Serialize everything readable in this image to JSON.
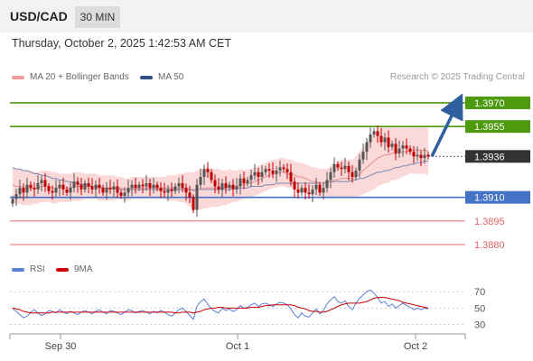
{
  "header": {
    "symbol": "USD/CAD",
    "timeframe": "30 MIN"
  },
  "timestamp": "Thursday, October 2, 2025 1:42:53 AM CET",
  "legend": {
    "bollinger": "MA 20 + Bollinger Bands",
    "ma50": "MA 50",
    "rsi": "RSI",
    "rsi_ma": "9MA",
    "credit": "Research © 2025 Trading Central"
  },
  "colors": {
    "resistance": "#4d9a0f",
    "support": "#4472c4",
    "last": "#333333",
    "red_level": "#e06666",
    "bull": "#555555",
    "bear": "#c00000",
    "band": "#fcd9d9",
    "ma20": "#e48c8c",
    "ma50": "#7a8bb5",
    "rsi": "#5b7fd8",
    "rsi_ma": "#cc0000",
    "arrow": "#2f5f9e"
  },
  "chart_data": [
    {
      "type": "candlestick",
      "title": "USD/CAD 30 MIN",
      "x_ticks": [
        "Sep 30",
        "Oct 1",
        "Oct 2"
      ],
      "ylim": [
        1.3872,
        1.3978
      ],
      "levels": [
        {
          "label": "1.3970",
          "value": 1.397,
          "kind": "resistance"
        },
        {
          "label": "1.3955",
          "value": 1.3955,
          "kind": "resistance"
        },
        {
          "label": "1.3936",
          "value": 1.3936,
          "kind": "last"
        },
        {
          "label": "1.3910",
          "value": 1.391,
          "kind": "support"
        },
        {
          "label": "1.3895",
          "value": 1.3895,
          "kind": "red"
        },
        {
          "label": "1.3880",
          "value": 1.388,
          "kind": "red"
        }
      ],
      "forecast_arrow": {
        "from": 1.3936,
        "to": 1.397
      },
      "close": [
        1.3909,
        1.3912,
        1.3916,
        1.3913,
        1.3918,
        1.3916,
        1.3915,
        1.3919,
        1.3921,
        1.3917,
        1.3914,
        1.3913,
        1.3916,
        1.3918,
        1.3915,
        1.3913,
        1.3916,
        1.392,
        1.3918,
        1.3915,
        1.3919,
        1.3917,
        1.3915,
        1.3918,
        1.3916,
        1.3913,
        1.3916,
        1.3915,
        1.3917,
        1.3913,
        1.3911,
        1.3913,
        1.3916,
        1.3918,
        1.3916,
        1.3918,
        1.3917,
        1.3919,
        1.3916,
        1.3918,
        1.3916,
        1.3914,
        1.3913,
        1.3915,
        1.3914,
        1.3917,
        1.3919,
        1.3916,
        1.3913,
        1.391,
        1.3902,
        1.3918,
        1.3923,
        1.3928,
        1.3926,
        1.3921,
        1.3917,
        1.3915,
        1.3919,
        1.3916,
        1.3918,
        1.3915,
        1.3917,
        1.3922,
        1.3919,
        1.3921,
        1.3924,
        1.3926,
        1.3923,
        1.3926,
        1.3928,
        1.3927,
        1.3925,
        1.3927,
        1.3929,
        1.3928,
        1.3926,
        1.392,
        1.3915,
        1.3913,
        1.3916,
        1.3913,
        1.3912,
        1.3915,
        1.3918,
        1.3913,
        1.3916,
        1.3921,
        1.3926,
        1.3931,
        1.3929,
        1.3928,
        1.393,
        1.3926,
        1.3923,
        1.3927,
        1.3934,
        1.3939,
        1.3945,
        1.395,
        1.3952,
        1.3949,
        1.3945,
        1.3948,
        1.3942,
        1.3944,
        1.3938,
        1.3941,
        1.3943,
        1.3941,
        1.3939,
        1.3936,
        1.3937,
        1.3935,
        1.3937,
        1.3936
      ],
      "ma20": [
        1.3918,
        1.3917,
        1.3917,
        1.3916,
        1.3916,
        1.3916,
        1.3916,
        1.3916,
        1.3917,
        1.3917,
        1.3917,
        1.3916,
        1.3916,
        1.3916,
        1.3916,
        1.3916,
        1.3916,
        1.3917,
        1.3917,
        1.3917,
        1.3917,
        1.3917,
        1.3917,
        1.3917,
        1.3916,
        1.3916,
        1.3916,
        1.3916,
        1.3916,
        1.3916,
        1.3916,
        1.3915,
        1.3915,
        1.3916,
        1.3916,
        1.3916,
        1.3916,
        1.3916,
        1.3916,
        1.3916,
        1.3916,
        1.3916,
        1.3916,
        1.3916,
        1.3916,
        1.3916,
        1.3916,
        1.3916,
        1.3916,
        1.3915,
        1.3914,
        1.3915,
        1.3915,
        1.3916,
        1.3916,
        1.3916,
        1.3916,
        1.3916,
        1.3916,
        1.3916,
        1.3917,
        1.3917,
        1.3917,
        1.3918,
        1.3918,
        1.3919,
        1.3919,
        1.392,
        1.3921,
        1.3922,
        1.3923,
        1.3924,
        1.3925,
        1.3925,
        1.3926,
        1.3926,
        1.3925,
        1.3925,
        1.3924,
        1.3923,
        1.3923,
        1.3922,
        1.3921,
        1.392,
        1.392,
        1.3919,
        1.3919,
        1.3919,
        1.392,
        1.3921,
        1.3921,
        1.3922,
        1.3922,
        1.3922,
        1.3922,
        1.3923,
        1.3925,
        1.3927,
        1.3929,
        1.3931,
        1.3933,
        1.3935,
        1.3936,
        1.3937,
        1.3937,
        1.3938,
        1.3938,
        1.3938,
        1.3939,
        1.3939,
        1.394,
        1.394,
        1.394,
        1.394,
        1.394,
        1.3939
      ],
      "ma50": [
        1.3929,
        1.3928,
        1.3928,
        1.3927,
        1.3927,
        1.3926,
        1.3925,
        1.3925,
        1.3924,
        1.3924,
        1.3923,
        1.3922,
        1.3922,
        1.3921,
        1.3921,
        1.392,
        1.392,
        1.3919,
        1.3919,
        1.3918,
        1.3918,
        1.3918,
        1.3917,
        1.3917,
        1.3917,
        1.3916,
        1.3916,
        1.3916,
        1.3916,
        1.3916,
        1.3915,
        1.3915,
        1.3915,
        1.3915,
        1.3915,
        1.3915,
        1.3915,
        1.3915,
        1.3915,
        1.3915,
        1.3915,
        1.3915,
        1.3915,
        1.3915,
        1.3915,
        1.3915,
        1.3915,
        1.3915,
        1.3915,
        1.3915,
        1.3915,
        1.3915,
        1.3915,
        1.3915,
        1.3915,
        1.3915,
        1.3915,
        1.3915,
        1.3915,
        1.3915,
        1.3915,
        1.3916,
        1.3916,
        1.3916,
        1.3916,
        1.3916,
        1.3917,
        1.3917,
        1.3917,
        1.3917,
        1.3918,
        1.3918,
        1.3918,
        1.3919,
        1.3919,
        1.3919,
        1.3919,
        1.3919,
        1.3919,
        1.3919,
        1.3919,
        1.3919,
        1.3919,
        1.3919,
        1.3919,
        1.3919,
        1.3919,
        1.392,
        1.392,
        1.392,
        1.392,
        1.392,
        1.392,
        1.392,
        1.3921,
        1.3921,
        1.3922,
        1.3922,
        1.3923,
        1.3924,
        1.3925,
        1.3926,
        1.3926,
        1.3927,
        1.3927,
        1.3928,
        1.3929,
        1.3929,
        1.393,
        1.393,
        1.3931,
        1.3931,
        1.3932,
        1.3932,
        1.3933,
        1.3933
      ],
      "band_width": [
        0.0011,
        0.0011,
        0.0011,
        0.0011,
        0.0011,
        0.0011,
        0.001,
        0.001,
        0.001,
        0.001,
        0.001,
        0.001,
        0.001,
        0.0009,
        0.0009,
        0.0009,
        0.0009,
        0.0009,
        0.0009,
        0.0009,
        0.0008,
        0.0008,
        0.0008,
        0.0008,
        0.0008,
        0.0008,
        0.0008,
        0.0008,
        0.0008,
        0.0007,
        0.0007,
        0.0007,
        0.0007,
        0.0007,
        0.0007,
        0.0007,
        0.0007,
        0.0007,
        0.0007,
        0.0007,
        0.0007,
        0.0007,
        0.0007,
        0.0008,
        0.0008,
        0.0008,
        0.0009,
        0.0009,
        0.001,
        0.0011,
        0.0012,
        0.0012,
        0.0013,
        0.0013,
        0.0013,
        0.0012,
        0.0012,
        0.0012,
        0.0011,
        0.0011,
        0.0011,
        0.001,
        0.001,
        0.001,
        0.0009,
        0.0009,
        0.0009,
        0.0009,
        0.0009,
        0.0009,
        0.0009,
        0.0009,
        0.0009,
        0.0009,
        0.0009,
        0.0009,
        0.0009,
        0.0009,
        0.0009,
        0.0009,
        0.0009,
        0.0009,
        0.0009,
        0.0009,
        0.0009,
        0.0009,
        0.0009,
        0.0009,
        0.001,
        0.0011,
        0.0011,
        0.0012,
        0.0012,
        0.0012,
        0.0012,
        0.0013,
        0.0014,
        0.0015,
        0.0016,
        0.0017,
        0.0018,
        0.0018,
        0.0018,
        0.0018,
        0.0018,
        0.0017,
        0.0017,
        0.0016,
        0.0016,
        0.0015,
        0.0015,
        0.0015,
        0.0015,
        0.0015,
        0.0015,
        0.0015
      ]
    },
    {
      "type": "line",
      "title": "RSI",
      "y_ticks": [
        70,
        50,
        30
      ],
      "ylim": [
        25,
        78
      ],
      "series": [
        {
          "name": "RSI",
          "values": [
            49,
            46,
            42,
            38,
            40,
            45,
            48,
            44,
            41,
            43,
            47,
            46,
            44,
            48,
            45,
            43,
            46,
            44,
            42,
            45,
            47,
            45,
            43,
            46,
            48,
            45,
            43,
            47,
            46,
            44,
            42,
            45,
            48,
            47,
            44,
            46,
            47,
            45,
            43,
            46,
            44,
            47,
            45,
            42,
            40,
            44,
            48,
            50,
            46,
            41,
            36,
            52,
            58,
            61,
            55,
            49,
            46,
            44,
            50,
            47,
            49,
            46,
            48,
            53,
            50,
            51,
            54,
            56,
            52,
            55,
            56,
            54,
            52,
            55,
            57,
            56,
            54,
            49,
            42,
            38,
            44,
            40,
            39,
            44,
            49,
            43,
            47,
            55,
            60,
            64,
            58,
            56,
            59,
            52,
            48,
            56,
            62,
            66,
            70,
            72,
            68,
            63,
            56,
            58,
            52,
            55,
            50,
            53,
            56,
            53,
            51,
            48,
            50,
            48,
            50,
            49
          ]
        },
        {
          "name": "9MA",
          "values": [
            50,
            49,
            48,
            46,
            45,
            44,
            44,
            44,
            44,
            44,
            44,
            45,
            45,
            45,
            45,
            45,
            45,
            45,
            45,
            45,
            45,
            45,
            45,
            45,
            45,
            45,
            45,
            45,
            45,
            45,
            45,
            45,
            45,
            45,
            45,
            45,
            45,
            45,
            45,
            45,
            45,
            45,
            45,
            45,
            45,
            44,
            44,
            45,
            45,
            45,
            44,
            45,
            46,
            48,
            49,
            50,
            50,
            51,
            51,
            50,
            50,
            50,
            50,
            50,
            50,
            50,
            51,
            51,
            51,
            52,
            53,
            53,
            54,
            54,
            54,
            54,
            54,
            54,
            53,
            51,
            50,
            49,
            47,
            46,
            46,
            45,
            45,
            46,
            48,
            50,
            52,
            54,
            55,
            56,
            56,
            56,
            56,
            57,
            58,
            60,
            62,
            63,
            63,
            63,
            62,
            61,
            60,
            59,
            57,
            56,
            55,
            54,
            53,
            52,
            51,
            50
          ]
        }
      ]
    }
  ]
}
